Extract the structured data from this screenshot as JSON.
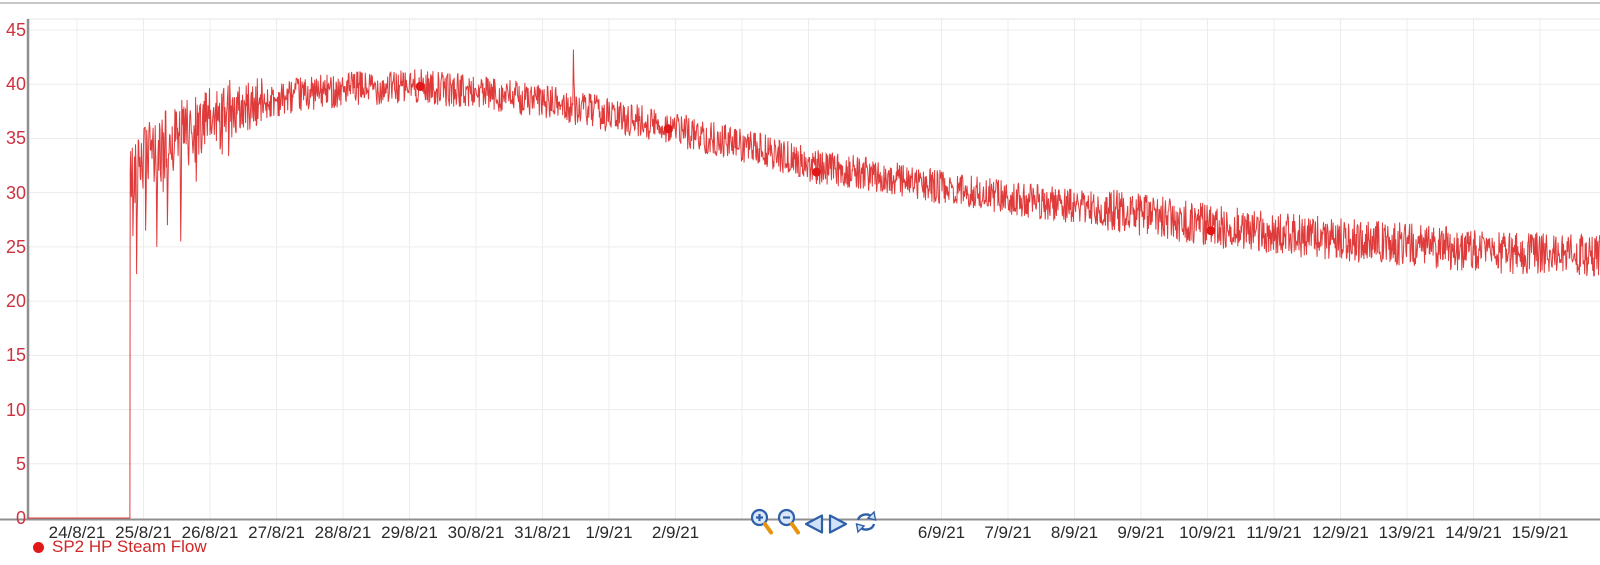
{
  "legend": {
    "label": "SP2 HP Steam Flow"
  },
  "toolbar": {
    "buttons": [
      {
        "name": "zoom-in",
        "icon": "zoom-in-icon"
      },
      {
        "name": "zoom-out",
        "icon": "zoom-out-icon"
      },
      {
        "name": "pan-left",
        "icon": "arrow-left-icon"
      },
      {
        "name": "pan-right",
        "icon": "arrow-right-icon"
      },
      {
        "name": "refresh",
        "icon": "refresh-icon"
      }
    ]
  },
  "colors": {
    "series": "#dd2a2a",
    "marker": "#e01818",
    "y_label": "#cc3340",
    "x_label": "#2a2a2a",
    "legend_text": "#d02626",
    "grid": "#ececec",
    "axis": "#8f8f8f",
    "toolbar_blue": "#2f5fa8",
    "toolbar_blue_fill": "#d9e7f8",
    "toolbar_orange": "#e8930e"
  },
  "chart_data": {
    "type": "line",
    "title": "",
    "xlabel": "",
    "ylabel": "",
    "grid": true,
    "legend_position": "bottom-left",
    "y_ticks": [
      0,
      5,
      10,
      15,
      20,
      25,
      30,
      35,
      40,
      45
    ],
    "ylim": [
      0,
      46.5
    ],
    "xlim_days": [
      -0.74,
      22.9
    ],
    "x_ticks": [
      {
        "label": "24/8/21",
        "day": 0
      },
      {
        "label": "25/8/21",
        "day": 1
      },
      {
        "label": "26/8/21",
        "day": 2
      },
      {
        "label": "27/8/21",
        "day": 3
      },
      {
        "label": "28/8/21",
        "day": 4
      },
      {
        "label": "29/8/21",
        "day": 5
      },
      {
        "label": "30/8/21",
        "day": 6
      },
      {
        "label": "31/8/21",
        "day": 7
      },
      {
        "label": "1/9/21",
        "day": 8
      },
      {
        "label": "2/9/21",
        "day": 9
      },
      {
        "label": "6/9/21",
        "day": 13
      },
      {
        "label": "7/9/21",
        "day": 14
      },
      {
        "label": "8/9/21",
        "day": 15
      },
      {
        "label": "9/9/21",
        "day": 16
      },
      {
        "label": "10/9/21",
        "day": 17
      },
      {
        "label": "11/9/21",
        "day": 18
      },
      {
        "label": "12/9/21",
        "day": 19
      },
      {
        "label": "13/9/21",
        "day": 20
      },
      {
        "label": "14/9/21",
        "day": 21
      },
      {
        "label": "15/9/21",
        "day": 22
      }
    ],
    "gridline_day_range": [
      0,
      22
    ],
    "series": [
      {
        "name": "SP2 HP Steam Flow",
        "zero_segment": {
          "from_day": -0.74,
          "to_day": 0.795,
          "value": 0
        },
        "anchors": [
          [
            0.8,
            31.5
          ],
          [
            0.95,
            33.0
          ],
          [
            1.15,
            33.5
          ],
          [
            1.5,
            35.2
          ],
          [
            1.9,
            36.3
          ],
          [
            2.6,
            38.0
          ],
          [
            3.3,
            39.0
          ],
          [
            4.1,
            39.6
          ],
          [
            5.2,
            39.8
          ],
          [
            6.1,
            39.2
          ],
          [
            7.0,
            38.4
          ],
          [
            7.7,
            37.6
          ],
          [
            8.0,
            37.1
          ],
          [
            8.8,
            36.2
          ],
          [
            9.4,
            35.2
          ],
          [
            10.3,
            33.9
          ],
          [
            11.1,
            32.4
          ],
          [
            11.9,
            31.7
          ],
          [
            12.8,
            30.7
          ],
          [
            13.9,
            29.6
          ],
          [
            14.8,
            28.9
          ],
          [
            15.8,
            28.2
          ],
          [
            17.0,
            27.0
          ],
          [
            18.2,
            26.1
          ],
          [
            19.4,
            25.5
          ],
          [
            20.6,
            24.9
          ],
          [
            21.7,
            24.4
          ],
          [
            22.9,
            24.1
          ]
        ],
        "down_spikes": [
          [
            0.84,
            26.0
          ],
          [
            0.9,
            22.5
          ],
          [
            1.03,
            26.5
          ],
          [
            1.2,
            25.0
          ],
          [
            1.36,
            27.0
          ],
          [
            1.56,
            25.5
          ],
          [
            1.79,
            31.0
          ]
        ],
        "up_spike": [
          7.46,
          43.2
        ],
        "markers": [
          [
            5.16,
            39.8
          ],
          [
            8.89,
            35.9
          ],
          [
            11.12,
            31.9
          ],
          [
            17.05,
            26.5
          ]
        ],
        "noise": {
          "band_halfwidth_start": 3.2,
          "band_halfwidth_mid": 1.6,
          "band_halfwidth_end": 2.0,
          "start_region_end_day": 2.3,
          "end_region_start_day": 15.5
        }
      }
    ]
  }
}
